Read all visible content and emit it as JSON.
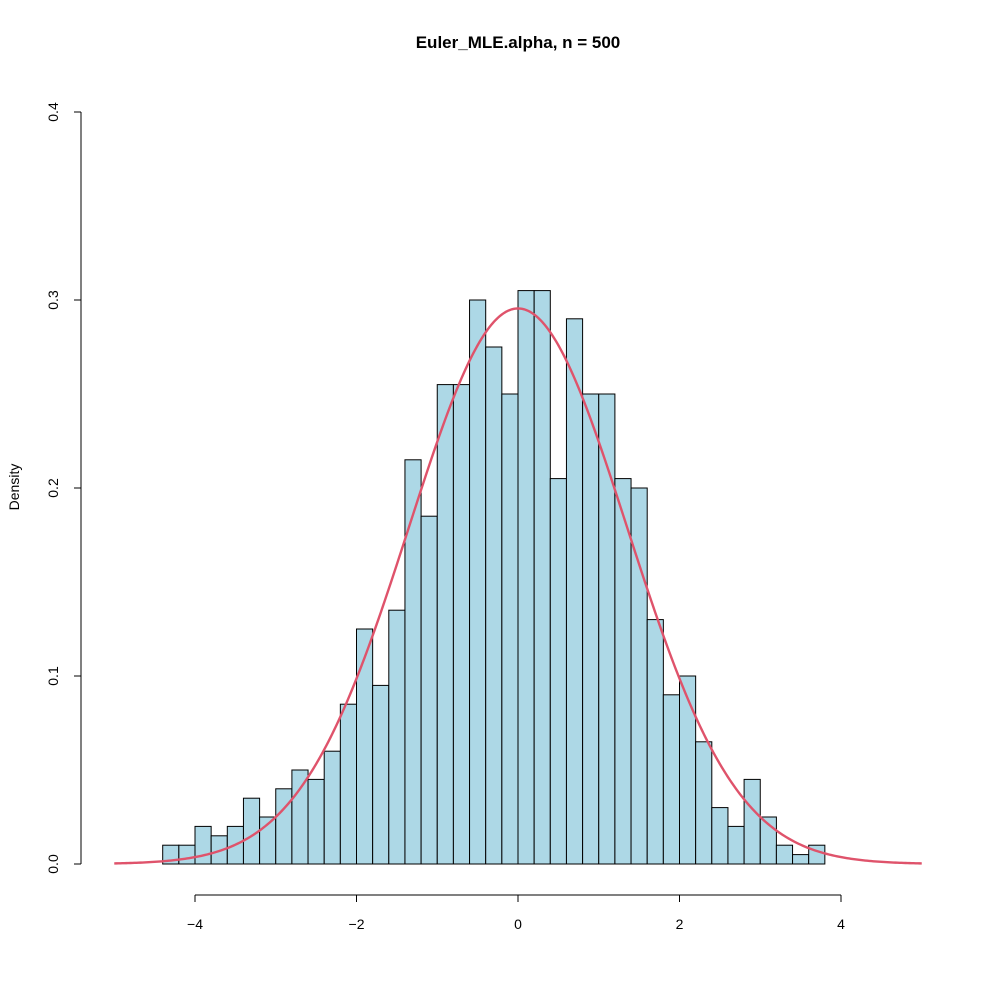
{
  "chart_data": {
    "type": "bar",
    "title": "Euler_MLE.alpha, n = 500",
    "xlabel": "",
    "ylabel": "Density",
    "xlim": [
      -5,
      5
    ],
    "ylim": [
      0,
      0.4
    ],
    "x_ticks": [
      -4,
      -2,
      0,
      2,
      4
    ],
    "x_tick_labels": [
      "−4",
      "−2",
      "0",
      "2",
      "4"
    ],
    "y_ticks": [
      0.0,
      0.1,
      0.2,
      0.3,
      0.4
    ],
    "y_tick_labels": [
      "0.0",
      "0.1",
      "0.2",
      "0.3",
      "0.4"
    ],
    "bin_width": 0.2,
    "bin_start": -4.4,
    "densities": [
      0.01,
      0.01,
      0.02,
      0.015,
      0.02,
      0.035,
      0.025,
      0.04,
      0.05,
      0.045,
      0.06,
      0.085,
      0.125,
      0.095,
      0.135,
      0.215,
      0.185,
      0.255,
      0.255,
      0.3,
      0.275,
      0.25,
      0.305,
      0.305,
      0.205,
      0.29,
      0.25,
      0.25,
      0.205,
      0.2,
      0.13,
      0.09,
      0.1,
      0.065,
      0.03,
      0.02,
      0.045,
      0.025,
      0.01,
      0.005,
      0.01
    ],
    "curve": {
      "kind": "normal-density",
      "mean": 0,
      "sd": 1.35,
      "range": [
        -5,
        5
      ]
    },
    "bar_fill": "#add8e6",
    "bar_stroke": "#000000",
    "curve_color": "#df536b",
    "grid": false
  }
}
